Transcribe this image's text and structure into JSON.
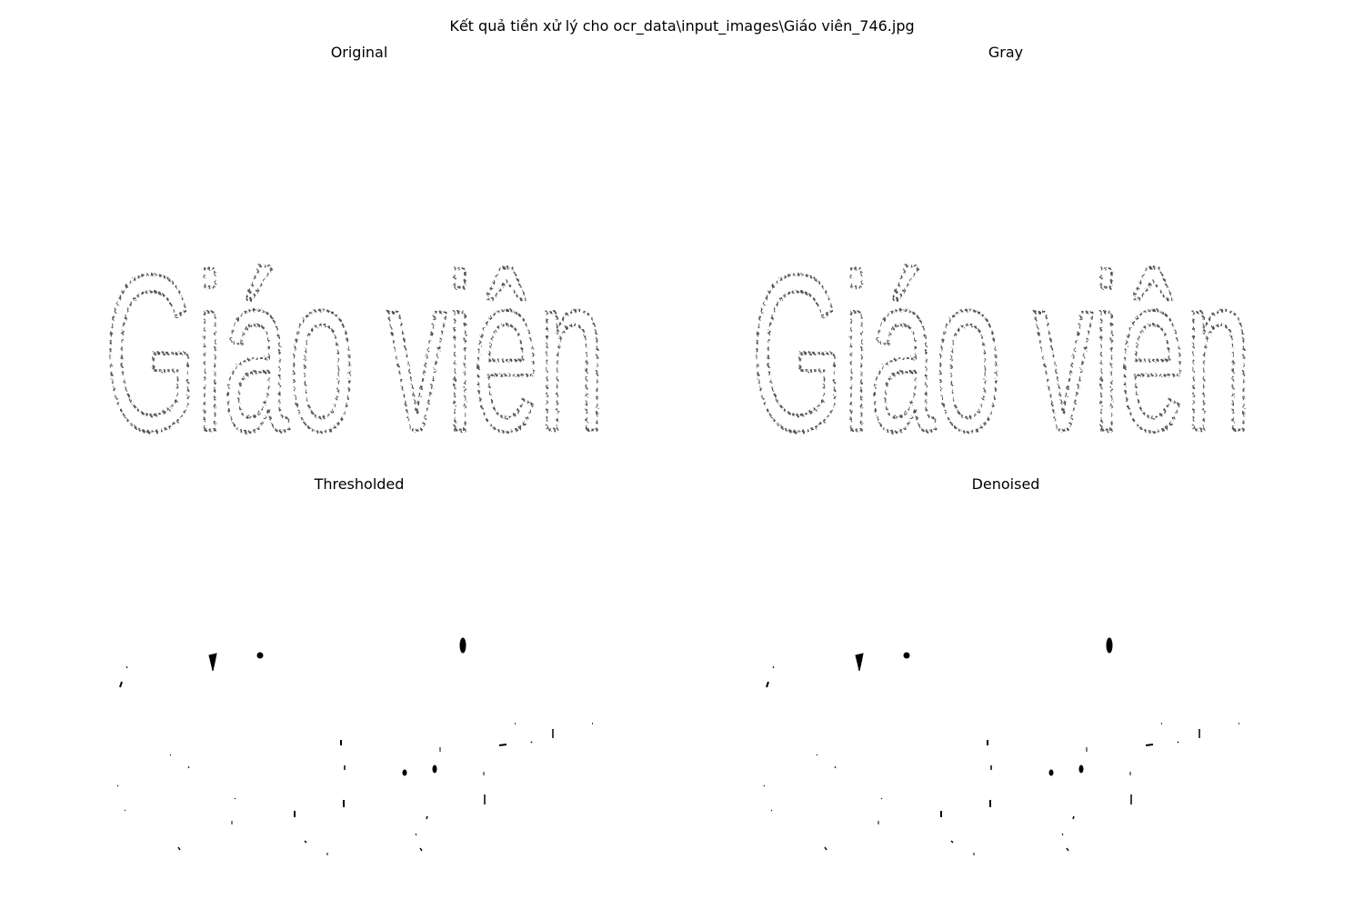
{
  "figure": {
    "suptitle": "Kết quả tiền xử lý cho ocr_data\\input_images\\Giáo viên_746.jpg"
  },
  "panels": {
    "original": {
      "title": "Original",
      "rendered_text": "Giáo viên"
    },
    "gray": {
      "title": "Gray",
      "rendered_text": "Giáo viên"
    },
    "thresholded": {
      "title": "Thresholded"
    },
    "denoised": {
      "title": "Denoised"
    }
  },
  "colors": {
    "background": "#ffffff",
    "stroke_dark": "#1a1a1a",
    "stroke_light": "#9a9a9a"
  }
}
